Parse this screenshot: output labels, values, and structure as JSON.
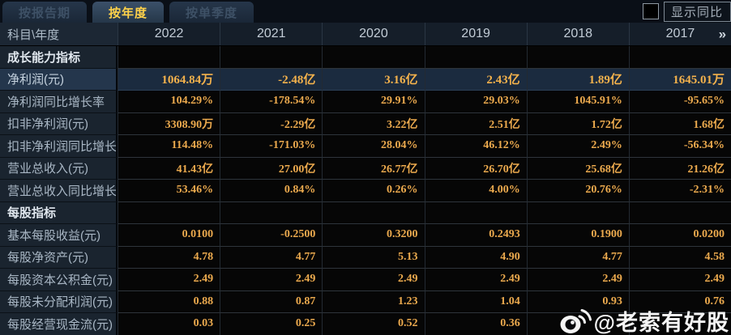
{
  "tabs": [
    {
      "label": "按报告期",
      "active": false
    },
    {
      "label": "按年度",
      "active": true
    },
    {
      "label": "按单季度",
      "active": false
    }
  ],
  "controls": {
    "show_yoy_label": "显示同比",
    "checkbox_checked": false
  },
  "table": {
    "corner_label": "科目\\年度",
    "years": [
      "2022",
      "2021",
      "2020",
      "2019",
      "2018",
      "2017"
    ],
    "more_icon": "»",
    "rows": [
      {
        "type": "section",
        "highlight": false,
        "label": "成长能力指标",
        "values": [
          "",
          "",
          "",
          "",
          "",
          ""
        ]
      },
      {
        "type": "data",
        "highlight": true,
        "label": "净利润(元)",
        "values": [
          "1064.84万",
          "-2.48亿",
          "3.16亿",
          "2.43亿",
          "1.89亿",
          "1645.01万"
        ]
      },
      {
        "type": "data",
        "highlight": false,
        "label": "净利润同比增长率",
        "values": [
          "104.29%",
          "-178.54%",
          "29.91%",
          "29.03%",
          "1045.91%",
          "-95.65%"
        ]
      },
      {
        "type": "data",
        "highlight": false,
        "label": "扣非净利润(元)",
        "values": [
          "3308.90万",
          "-2.29亿",
          "3.22亿",
          "2.51亿",
          "1.72亿",
          "1.68亿"
        ]
      },
      {
        "type": "data",
        "highlight": false,
        "label": "扣非净利润同比增长率",
        "values": [
          "114.48%",
          "-171.03%",
          "28.04%",
          "46.12%",
          "2.49%",
          "-56.34%"
        ]
      },
      {
        "type": "data",
        "highlight": false,
        "label": "营业总收入(元)",
        "values": [
          "41.43亿",
          "27.00亿",
          "26.77亿",
          "26.70亿",
          "25.68亿",
          "21.26亿"
        ]
      },
      {
        "type": "data",
        "highlight": false,
        "label": "营业总收入同比增长率",
        "values": [
          "53.46%",
          "0.84%",
          "0.26%",
          "4.00%",
          "20.76%",
          "-2.31%"
        ]
      },
      {
        "type": "section",
        "highlight": false,
        "label": "每股指标",
        "values": [
          "",
          "",
          "",
          "",
          "",
          ""
        ]
      },
      {
        "type": "data",
        "highlight": false,
        "label": "基本每股收益(元)",
        "values": [
          "0.0100",
          "-0.2500",
          "0.3200",
          "0.2493",
          "0.1900",
          "0.0200"
        ]
      },
      {
        "type": "data",
        "highlight": false,
        "label": "每股净资产(元)",
        "values": [
          "4.78",
          "4.77",
          "5.13",
          "4.90",
          "4.77",
          "4.58"
        ]
      },
      {
        "type": "data",
        "highlight": false,
        "label": "每股资本公积金(元)",
        "values": [
          "2.49",
          "2.49",
          "2.49",
          "2.49",
          "2.49",
          "2.49"
        ]
      },
      {
        "type": "data",
        "highlight": false,
        "label": "每股未分配利润(元)",
        "values": [
          "0.88",
          "0.87",
          "1.23",
          "1.04",
          "0.93",
          "0.76"
        ]
      },
      {
        "type": "data",
        "highlight": false,
        "label": "每股经营现金流(元)",
        "values": [
          "0.03",
          "0.25",
          "0.52",
          "0.36",
          "",
          ""
        ]
      }
    ]
  },
  "watermark": {
    "text": "@老索有好股",
    "icon": "weibo-icon"
  },
  "colors": {
    "accent_yellow": "#ffd24a",
    "value_orange": "#ecaa4e",
    "highlight_value_orange": "#f4b24c",
    "highlight_row_bg": "#1b2b3f",
    "highlight_label_bg": "#24364c",
    "label_column_bg": "#1a242f",
    "header_bg": "#151e29",
    "page_bg": "#05080c",
    "watermark_color": "#ffffff"
  }
}
